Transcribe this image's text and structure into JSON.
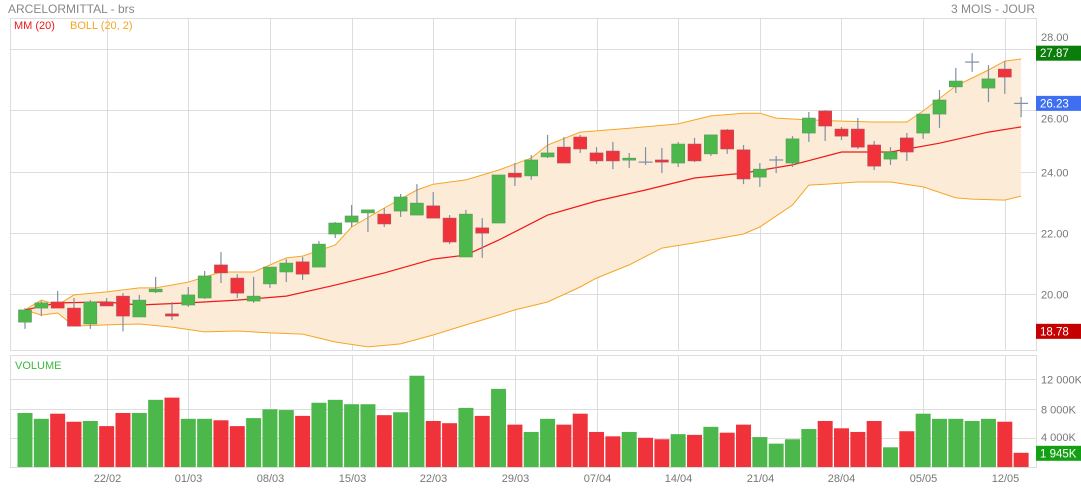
{
  "header": {
    "title": "ARCELORMITTAL - brs",
    "period": "3 MOIS - JOUR"
  },
  "legend": {
    "ma": "MM (20)",
    "boll": "BOLL (20, 2)",
    "volume": "VOLUME"
  },
  "colors": {
    "up": "#4cb84c",
    "down": "#f0323a",
    "doji": "#7f8fa6",
    "ma": "#f01818",
    "boll": "#f5a623",
    "bollFill": "#fcebd6",
    "grid": "#dddddd",
    "highBadge": "#0a7d0a",
    "lastBadge": "#3d6ff0",
    "lowBadge": "#c40000",
    "volBadge": "#14a014"
  },
  "badges": {
    "high": "27.87",
    "last": "26.23",
    "low": "18.78",
    "volume": "1 945K"
  },
  "chart_data": [
    {
      "type": "candlestick",
      "title": "ARCELORMITTAL - brs",
      "ylim": [
        18.17,
        29.02
      ],
      "y_ticks": [
        "20.00",
        "22.00",
        "24.00",
        "26.00",
        "28.00"
      ],
      "y_tick_values": [
        20,
        22,
        24,
        26,
        28
      ],
      "x_ticks": [
        {
          "index": 5,
          "label": "22/02"
        },
        {
          "index": 10,
          "label": "01/03"
        },
        {
          "index": 15,
          "label": "08/03"
        },
        {
          "index": 20,
          "label": "15/03"
        },
        {
          "index": 25,
          "label": "22/03"
        },
        {
          "index": 30,
          "label": "29/03"
        },
        {
          "index": 35,
          "label": "07/04"
        },
        {
          "index": 40,
          "label": "14/04"
        },
        {
          "index": 45,
          "label": "21/04"
        },
        {
          "index": 50,
          "label": "28/04"
        },
        {
          "index": 55,
          "label": "05/05"
        },
        {
          "index": 60,
          "label": "12/05"
        }
      ],
      "ohlc": [
        [
          19.08,
          19.54,
          18.86,
          19.48
        ],
        [
          19.54,
          19.77,
          19.28,
          19.71
        ],
        [
          19.74,
          20.1,
          19.54,
          19.54
        ],
        [
          19.54,
          19.87,
          18.95,
          18.95
        ],
        [
          19.02,
          19.8,
          18.86,
          19.74
        ],
        [
          19.74,
          19.87,
          19.61,
          19.61
        ],
        [
          19.93,
          20.03,
          18.78,
          19.28
        ],
        [
          19.25,
          19.97,
          19.25,
          19.8
        ],
        [
          20.07,
          20.56,
          20.03,
          20.16
        ],
        [
          19.35,
          19.74,
          19.15,
          19.28
        ],
        [
          19.64,
          20.23,
          19.58,
          19.97
        ],
        [
          19.87,
          20.75,
          19.84,
          20.59
        ],
        [
          20.95,
          21.37,
          20.36,
          20.69
        ],
        [
          20.52,
          20.65,
          19.87,
          20.03
        ],
        [
          19.77,
          20.56,
          19.71,
          19.93
        ],
        [
          20.33,
          20.88,
          20.2,
          20.88
        ],
        [
          20.72,
          21.14,
          20.39,
          21.01
        ],
        [
          21.05,
          21.21,
          20.46,
          20.65
        ],
        [
          20.88,
          21.73,
          20.88,
          21.63
        ],
        [
          21.96,
          22.35,
          21.83,
          22.32
        ],
        [
          22.35,
          22.91,
          22.19,
          22.55
        ],
        [
          22.65,
          22.75,
          22.03,
          22.75
        ],
        [
          22.61,
          22.81,
          22.19,
          22.29
        ],
        [
          22.71,
          23.27,
          22.52,
          23.17
        ],
        [
          22.58,
          23.59,
          22.58,
          22.97
        ],
        [
          22.88,
          23.33,
          22.48,
          22.48
        ],
        [
          22.48,
          22.58,
          21.63,
          21.7
        ],
        [
          21.21,
          22.75,
          21.21,
          22.61
        ],
        [
          22.16,
          22.48,
          21.18,
          21.99
        ],
        [
          22.32,
          23.89,
          22.32,
          23.89
        ],
        [
          23.95,
          24.28,
          23.53,
          23.82
        ],
        [
          23.86,
          24.54,
          23.73,
          24.38
        ],
        [
          24.48,
          25.2,
          24.44,
          24.61
        ],
        [
          24.8,
          25.13,
          24.28,
          24.28
        ],
        [
          25.13,
          25.2,
          24.61,
          24.74
        ],
        [
          24.61,
          24.8,
          24.25,
          24.35
        ],
        [
          24.67,
          24.97,
          24.08,
          24.35
        ],
        [
          24.41,
          24.61,
          24.12,
          24.44
        ],
        [
          24.31,
          24.8,
          24.22,
          24.31
        ],
        [
          24.38,
          24.77,
          23.95,
          24.31
        ],
        [
          24.28,
          24.97,
          24.15,
          24.9
        ],
        [
          24.9,
          25.1,
          24.31,
          24.35
        ],
        [
          24.58,
          25.2,
          24.51,
          25.2
        ],
        [
          25.36,
          25.39,
          24.58,
          24.74
        ],
        [
          24.71,
          24.87,
          23.59,
          23.76
        ],
        [
          23.82,
          24.28,
          23.5,
          24.08
        ],
        [
          24.38,
          24.51,
          23.95,
          24.38
        ],
        [
          24.28,
          25.16,
          24.15,
          25.07
        ],
        [
          25.26,
          25.95,
          24.97,
          25.75
        ],
        [
          25.98,
          26.01,
          25.0,
          25.49
        ],
        [
          25.39,
          25.46,
          25.03,
          25.16
        ],
        [
          25.39,
          25.75,
          24.74,
          24.8
        ],
        [
          24.87,
          25.0,
          24.05,
          24.18
        ],
        [
          24.41,
          24.8,
          24.22,
          24.64
        ],
        [
          25.1,
          25.26,
          24.35,
          24.64
        ],
        [
          25.26,
          25.88,
          25.07,
          25.88
        ],
        [
          25.88,
          26.67,
          25.43,
          26.34
        ],
        [
          26.77,
          27.39,
          26.57,
          26.96
        ],
        [
          27.58,
          27.87,
          27.26,
          27.58
        ],
        [
          26.73,
          27.48,
          26.27,
          27.03
        ],
        [
          27.35,
          27.61,
          26.54,
          27.09
        ],
        [
          26.23,
          26.44,
          25.78,
          26.23
        ]
      ],
      "ma20": [
        [
          0,
          19.48
        ],
        [
          2,
          19.71
        ],
        [
          5,
          19.74
        ],
        [
          7,
          19.64
        ],
        [
          10,
          19.71
        ],
        [
          13,
          19.8
        ],
        [
          16,
          19.93
        ],
        [
          19,
          20.29
        ],
        [
          22,
          20.69
        ],
        [
          25,
          21.14
        ],
        [
          27,
          21.27
        ],
        [
          29,
          21.76
        ],
        [
          32,
          22.58
        ],
        [
          35,
          23.04
        ],
        [
          38,
          23.4
        ],
        [
          41,
          23.79
        ],
        [
          44,
          23.95
        ],
        [
          47,
          24.22
        ],
        [
          50,
          24.64
        ],
        [
          53,
          24.64
        ],
        [
          56,
          24.93
        ],
        [
          59,
          25.29
        ],
        [
          61,
          25.46
        ]
      ],
      "boll_upper": [
        [
          0,
          19.48
        ],
        [
          1,
          19.8
        ],
        [
          2,
          19.64
        ],
        [
          3,
          19.97
        ],
        [
          5,
          20.07
        ],
        [
          7,
          20.2
        ],
        [
          8,
          20.2
        ],
        [
          10,
          20.39
        ],
        [
          12,
          20.72
        ],
        [
          14,
          20.72
        ],
        [
          16,
          21.18
        ],
        [
          17,
          21.24
        ],
        [
          19,
          21.6
        ],
        [
          20,
          22.19
        ],
        [
          22,
          22.81
        ],
        [
          24,
          23.4
        ],
        [
          25,
          23.59
        ],
        [
          27,
          23.73
        ],
        [
          29,
          24.05
        ],
        [
          31,
          24.44
        ],
        [
          32,
          24.87
        ],
        [
          34,
          25.29
        ],
        [
          37,
          25.42
        ],
        [
          40,
          25.56
        ],
        [
          42,
          25.82
        ],
        [
          44,
          25.91
        ],
        [
          45,
          25.91
        ],
        [
          46,
          25.75
        ],
        [
          48,
          25.69
        ],
        [
          50,
          25.65
        ],
        [
          52,
          25.62
        ],
        [
          54,
          25.62
        ],
        [
          55,
          25.98
        ],
        [
          57,
          26.8
        ],
        [
          58,
          27.06
        ],
        [
          59,
          27.32
        ],
        [
          60,
          27.61
        ],
        [
          61,
          27.68
        ]
      ],
      "boll_lower": [
        [
          0,
          19.48
        ],
        [
          1,
          19.31
        ],
        [
          2,
          19.38
        ],
        [
          3,
          18.95
        ],
        [
          5,
          18.99
        ],
        [
          7,
          19.02
        ],
        [
          9,
          18.92
        ],
        [
          11,
          18.76
        ],
        [
          13,
          18.79
        ],
        [
          15,
          18.73
        ],
        [
          17,
          18.69
        ],
        [
          19,
          18.43
        ],
        [
          21,
          18.27
        ],
        [
          23,
          18.37
        ],
        [
          25,
          18.66
        ],
        [
          27,
          18.99
        ],
        [
          29,
          19.31
        ],
        [
          30,
          19.48
        ],
        [
          32,
          19.74
        ],
        [
          34,
          20.23
        ],
        [
          35,
          20.52
        ],
        [
          37,
          20.95
        ],
        [
          39,
          21.5
        ],
        [
          41,
          21.67
        ],
        [
          44,
          21.96
        ],
        [
          45,
          22.19
        ],
        [
          47,
          22.91
        ],
        [
          48,
          23.56
        ],
        [
          49,
          23.59
        ],
        [
          51,
          23.66
        ],
        [
          53,
          23.66
        ],
        [
          55,
          23.5
        ],
        [
          57,
          23.14
        ],
        [
          58,
          23.1
        ],
        [
          60,
          23.07
        ],
        [
          61,
          23.2
        ]
      ]
    },
    {
      "type": "bar",
      "title": "VOLUME",
      "unit": "K",
      "ylim": [
        0,
        15340
      ],
      "y_ticks": [
        "4 000K",
        "8 000K",
        "12 000K"
      ],
      "y_tick_values": [
        4000,
        8000,
        12000
      ],
      "values": [
        7400,
        6600,
        7300,
        6200,
        6300,
        5600,
        7400,
        7400,
        9200,
        9500,
        6600,
        6600,
        6400,
        5600,
        6700,
        7900,
        7800,
        7000,
        8800,
        9200,
        8600,
        8600,
        7100,
        7500,
        12500,
        6300,
        6000,
        8100,
        7000,
        10700,
        5800,
        4800,
        6600,
        5800,
        7300,
        4800,
        4200,
        4800,
        4000,
        3800,
        4500,
        4400,
        5500,
        4700,
        5800,
        4100,
        3200,
        3800,
        5200,
        6300,
        5300,
        4800,
        6300,
        2700,
        4900,
        7300,
        6600,
        6600,
        6300,
        6600,
        6200,
        1945
      ]
    }
  ]
}
